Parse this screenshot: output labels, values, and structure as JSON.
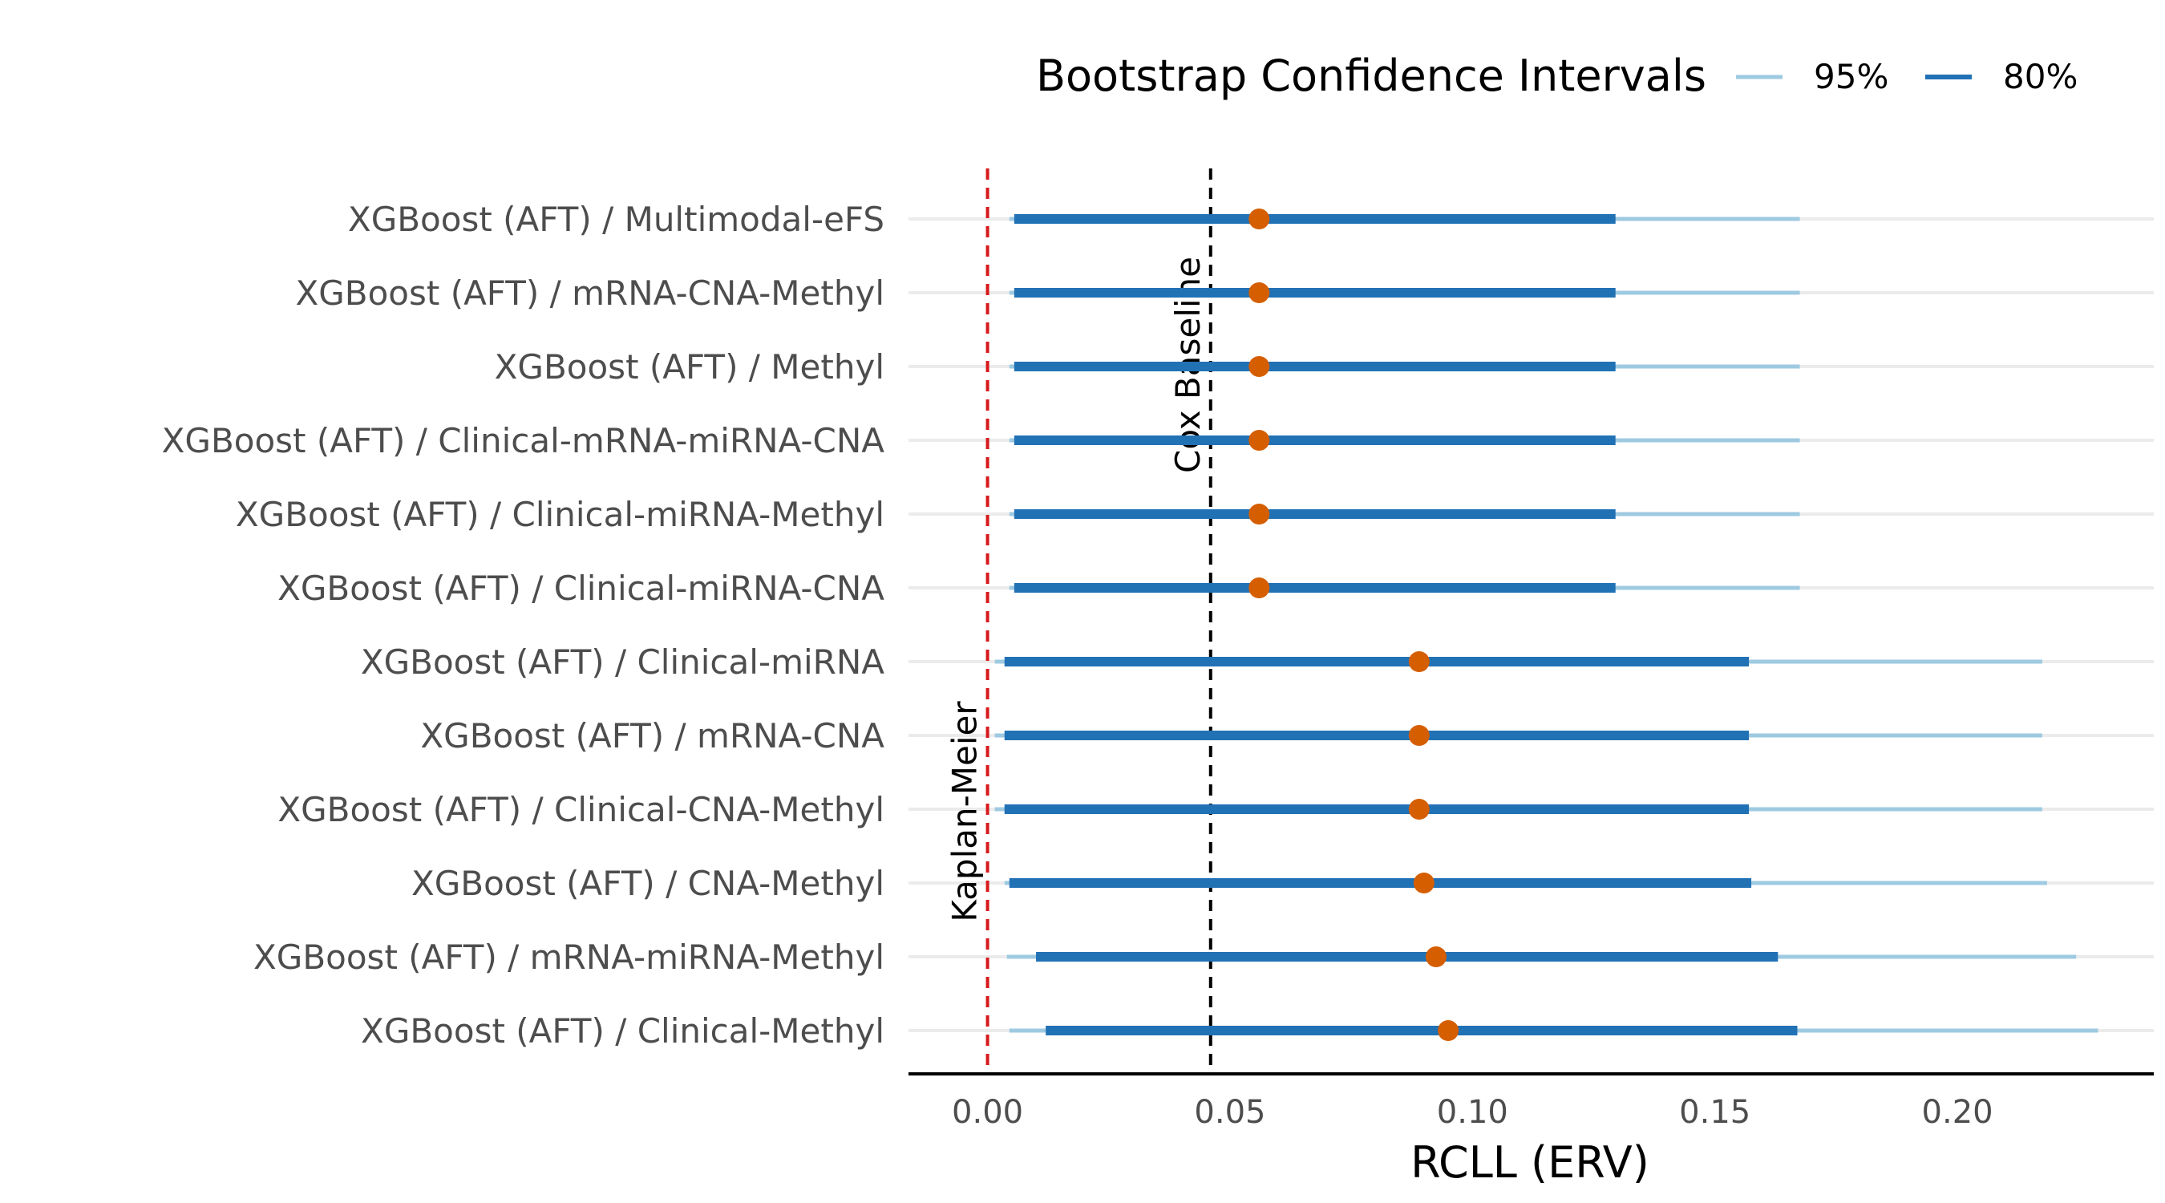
{
  "chart_data": {
    "type": "forest",
    "xlabel": "RCLL (ERV)",
    "xlim": [
      -0.0163,
      0.2405
    ],
    "x_ticks": [
      "0.00",
      "0.05",
      "0.10",
      "0.15",
      "0.20"
    ],
    "x_tick_values": [
      0.0,
      0.05,
      0.1,
      0.15,
      0.2
    ],
    "grid": "horizontal",
    "legend": {
      "title": "Bootstrap Confidence Intervals",
      "position": "top",
      "entries": [
        {
          "label": "95%",
          "color": "#9ecae1"
        },
        {
          "label": "80%",
          "color": "#2171b5"
        }
      ]
    },
    "reference_lines": [
      {
        "label": "Kaplan-Meier",
        "x": 0.0,
        "color": "#d7191c"
      },
      {
        "label": "Cox Baseline",
        "x": 0.046,
        "color": "#000000"
      }
    ],
    "point_color": "#d55e00",
    "rows": [
      {
        "label": "XGBoost (AFT) / Multimodal-eFS",
        "estimate": 0.056,
        "ci95": [
          0.0045,
          0.1675
        ],
        "ci80": [
          0.0055,
          0.1295
        ]
      },
      {
        "label": "XGBoost (AFT) / mRNA-CNA-Methyl",
        "estimate": 0.056,
        "ci95": [
          0.0045,
          0.1675
        ],
        "ci80": [
          0.0055,
          0.1295
        ]
      },
      {
        "label": "XGBoost (AFT) / Methyl",
        "estimate": 0.056,
        "ci95": [
          0.0045,
          0.1675
        ],
        "ci80": [
          0.0055,
          0.1295
        ]
      },
      {
        "label": "XGBoost (AFT) / Clinical-mRNA-miRNA-CNA",
        "estimate": 0.056,
        "ci95": [
          0.0045,
          0.1675
        ],
        "ci80": [
          0.0055,
          0.1295
        ]
      },
      {
        "label": "XGBoost (AFT) / Clinical-miRNA-Methyl",
        "estimate": 0.056,
        "ci95": [
          0.0045,
          0.1675
        ],
        "ci80": [
          0.0055,
          0.1295
        ]
      },
      {
        "label": "XGBoost (AFT) / Clinical-miRNA-CNA",
        "estimate": 0.056,
        "ci95": [
          0.0045,
          0.1675
        ],
        "ci80": [
          0.0055,
          0.1295
        ]
      },
      {
        "label": "XGBoost (AFT) / Clinical-miRNA",
        "estimate": 0.089,
        "ci95": [
          0.0015,
          0.2175
        ],
        "ci80": [
          0.0035,
          0.157
        ]
      },
      {
        "label": "XGBoost (AFT) / mRNA-CNA",
        "estimate": 0.089,
        "ci95": [
          0.0015,
          0.2175
        ],
        "ci80": [
          0.0035,
          0.157
        ]
      },
      {
        "label": "XGBoost (AFT) / Clinical-CNA-Methyl",
        "estimate": 0.089,
        "ci95": [
          0.0015,
          0.2175
        ],
        "ci80": [
          0.0035,
          0.157
        ]
      },
      {
        "label": "XGBoost (AFT) / CNA-Methyl",
        "estimate": 0.09,
        "ci95": [
          0.0035,
          0.2185
        ],
        "ci80": [
          0.0045,
          0.1575
        ]
      },
      {
        "label": "XGBoost (AFT) / mRNA-miRNA-Methyl",
        "estimate": 0.0925,
        "ci95": [
          0.004,
          0.2245
        ],
        "ci80": [
          0.01,
          0.163
        ]
      },
      {
        "label": "XGBoost (AFT) / Clinical-Methyl",
        "estimate": 0.095,
        "ci95": [
          0.0045,
          0.229
        ],
        "ci80": [
          0.012,
          0.167
        ]
      }
    ]
  }
}
